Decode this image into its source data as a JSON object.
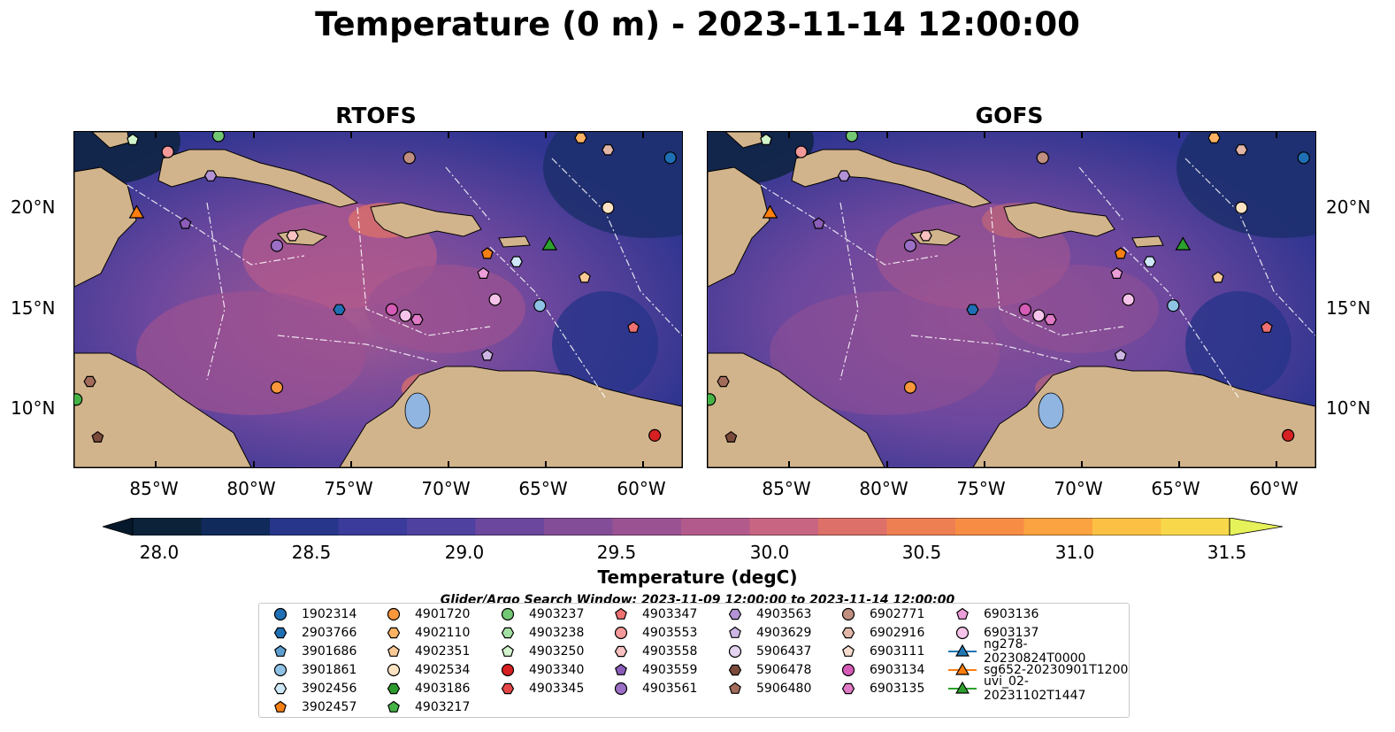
{
  "title": "Temperature (0 m) - 2023-11-14 12:00:00",
  "panels": [
    {
      "title": "RTOFS"
    },
    {
      "title": "GOFS"
    }
  ],
  "lon_labels": [
    "85°W",
    "80°W",
    "75°W",
    "70°W",
    "65°W",
    "60°W"
  ],
  "lat_labels": [
    "20°N",
    "15°N",
    "10°N"
  ],
  "colorbar": {
    "title": "Temperature (degC)",
    "ticks": [
      "28.0",
      "28.5",
      "29.0",
      "29.5",
      "30.0",
      "30.5",
      "31.0",
      "31.5"
    ],
    "range": [
      28.0,
      31.5
    ],
    "colors": [
      "#0b2239",
      "#102a5c",
      "#27358a",
      "#3a3b9a",
      "#4f41a0",
      "#6b479e",
      "#844d98",
      "#9b5292",
      "#b35a8c",
      "#c86583",
      "#dd7068",
      "#ee7f53",
      "#f78d45",
      "#fba340",
      "#fcc144",
      "#f8d84a"
    ],
    "extend_color": "#e6f25a"
  },
  "search_window": "Glider/Argo Search Window: 2023-11-09 12:00:00 to 2023-11-14 12:00:00",
  "legend": [
    {
      "label": "1902314",
      "marker": "circle",
      "color": "#1f6fb4"
    },
    {
      "label": "2903766",
      "marker": "hexagon",
      "color": "#1f6fb4"
    },
    {
      "label": "3901686",
      "marker": "pentagon",
      "color": "#5d9fd0"
    },
    {
      "label": "3901861",
      "marker": "circle",
      "color": "#8fc3e6"
    },
    {
      "label": "3902456",
      "marker": "hexagon",
      "color": "#cfe8f7"
    },
    {
      "label": "3902457",
      "marker": "pentagon",
      "color": "#f47f14"
    },
    {
      "label": "4901720",
      "marker": "circle",
      "color": "#f9973b"
    },
    {
      "label": "4902110",
      "marker": "hexagon",
      "color": "#fbb363"
    },
    {
      "label": "4902351",
      "marker": "pentagon",
      "color": "#fcca96"
    },
    {
      "label": "4902534",
      "marker": "circle",
      "color": "#fde3c3"
    },
    {
      "label": "4903186",
      "marker": "hexagon",
      "color": "#2c9a2c"
    },
    {
      "label": "4903217",
      "marker": "pentagon",
      "color": "#45b245"
    },
    {
      "label": "4903237",
      "marker": "circle",
      "color": "#73c873"
    },
    {
      "label": "4903238",
      "marker": "hexagon",
      "color": "#a3e0a3"
    },
    {
      "label": "4903250",
      "marker": "pentagon",
      "color": "#d2f4cc"
    },
    {
      "label": "4903340",
      "marker": "circle",
      "color": "#d62021"
    },
    {
      "label": "4903345",
      "marker": "hexagon",
      "color": "#e34646"
    },
    {
      "label": "4903347",
      "marker": "pentagon",
      "color": "#ee7070"
    },
    {
      "label": "4903553",
      "marker": "circle",
      "color": "#f4999a"
    },
    {
      "label": "4903558",
      "marker": "hexagon",
      "color": "#f8c0c0"
    },
    {
      "label": "4903559",
      "marker": "pentagon",
      "color": "#8b5cb8"
    },
    {
      "label": "4903561",
      "marker": "circle",
      "color": "#9b6fc6"
    },
    {
      "label": "4903563",
      "marker": "hexagon",
      "color": "#b393d5"
    },
    {
      "label": "4903629",
      "marker": "pentagon",
      "color": "#cdb6e4"
    },
    {
      "label": "5906437",
      "marker": "circle",
      "color": "#e4d4f1"
    },
    {
      "label": "5906478",
      "marker": "hexagon",
      "color": "#7b4a3a"
    },
    {
      "label": "5906480",
      "marker": "pentagon",
      "color": "#a26b5a"
    },
    {
      "label": "6902771",
      "marker": "circle",
      "color": "#c08f80"
    },
    {
      "label": "6902916",
      "marker": "hexagon",
      "color": "#e2b7a8"
    },
    {
      "label": "6903111",
      "marker": "pentagon",
      "color": "#f7dccf"
    },
    {
      "label": "6903134",
      "marker": "circle",
      "color": "#d45bb6"
    },
    {
      "label": "6903135",
      "marker": "hexagon",
      "color": "#e07ac6"
    },
    {
      "label": "6903136",
      "marker": "pentagon",
      "color": "#ec9ed8"
    },
    {
      "label": "6903137",
      "marker": "circle",
      "color": "#f6c4ea"
    },
    {
      "label": "ng278-20230824T0000",
      "marker": "triangle-line",
      "color": "#1f77b4"
    },
    {
      "label": "sg652-20230901T1200",
      "marker": "triangle-line",
      "color": "#ff7f0e"
    },
    {
      "label": "uvi_02-20231102T1447",
      "marker": "triangle-line",
      "color": "#2ca02c"
    }
  ]
}
